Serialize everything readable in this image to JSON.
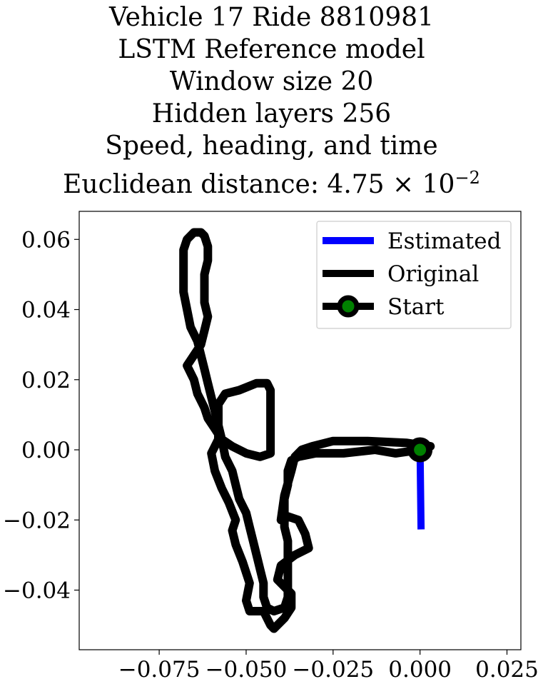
{
  "title_lines": [
    "Vehicle 17 Ride 8810981",
    "LSTM Reference model",
    "Window size 20",
    "Hidden layers 256",
    "Speed, heading, and time"
  ],
  "distance_title": {
    "prefix": "Euclidean distance: ",
    "mantissa": "4.75",
    "times": "×",
    "base": "10",
    "exponent": "−2"
  },
  "chart_data": {
    "type": "line",
    "xlabel": "",
    "ylabel": "",
    "xlim": [
      -0.098,
      0.029
    ],
    "ylim": [
      -0.057,
      0.068
    ],
    "grid": false,
    "legend_position": "top-right",
    "x_ticks": [
      -0.075,
      -0.05,
      -0.025,
      0.0,
      0.025
    ],
    "x_tick_labels": [
      "−0.075",
      "−0.050",
      "−0.025",
      "0.000",
      "0.025"
    ],
    "y_ticks": [
      0.06,
      0.04,
      0.02,
      0.0,
      -0.02,
      -0.04
    ],
    "y_tick_labels": [
      "0.06",
      "0.04",
      "0.02",
      "0.00",
      "−0.02",
      "−0.04"
    ],
    "series": [
      {
        "name": "Estimated",
        "color": "#0000ff",
        "points": [
          [
            0.0,
            0.0
          ],
          [
            0.0003,
            -0.0227
          ]
        ]
      },
      {
        "name": "Original",
        "color": "#000000",
        "points": [
          [
            0.0,
            0.0
          ],
          [
            0.003,
            0.001
          ],
          [
            -0.004,
            0.002
          ],
          [
            -0.015,
            0.0025
          ],
          [
            -0.025,
            0.0025
          ],
          [
            -0.031,
            0.001
          ],
          [
            -0.034,
            0.0
          ],
          [
            -0.036,
            -0.002
          ],
          [
            -0.037,
            -0.006
          ],
          [
            -0.039,
            -0.013
          ],
          [
            -0.04,
            -0.02
          ],
          [
            -0.038,
            -0.019
          ],
          [
            -0.035,
            -0.02
          ],
          [
            -0.033,
            -0.024
          ],
          [
            -0.032,
            -0.028
          ],
          [
            -0.036,
            -0.03
          ],
          [
            -0.04,
            -0.033
          ],
          [
            -0.041,
            -0.037
          ],
          [
            -0.038,
            -0.04
          ],
          [
            -0.037,
            -0.041
          ],
          [
            -0.037,
            -0.045
          ],
          [
            -0.039,
            -0.048
          ],
          [
            -0.042,
            -0.051
          ],
          [
            -0.043,
            -0.05
          ],
          [
            -0.045,
            -0.046
          ],
          [
            -0.049,
            -0.046
          ],
          [
            -0.05,
            -0.043
          ],
          [
            -0.049,
            -0.038
          ],
          [
            -0.051,
            -0.032
          ],
          [
            -0.053,
            -0.027
          ],
          [
            -0.054,
            -0.023
          ],
          [
            -0.053,
            -0.02
          ],
          [
            -0.055,
            -0.015
          ],
          [
            -0.057,
            -0.011
          ],
          [
            -0.059,
            -0.006
          ],
          [
            -0.06,
            -0.001
          ],
          [
            -0.058,
            0.003
          ],
          [
            -0.058,
            0.008
          ],
          [
            -0.058,
            0.013
          ],
          [
            -0.056,
            0.016
          ],
          [
            -0.052,
            0.017
          ],
          [
            -0.047,
            0.019
          ],
          [
            -0.044,
            0.019
          ],
          [
            -0.043,
            0.017
          ],
          [
            -0.043,
            0.013
          ],
          [
            -0.043,
            0.008
          ],
          [
            -0.043,
            0.003
          ],
          [
            -0.043,
            -0.001
          ],
          [
            -0.046,
            -0.002
          ],
          [
            -0.05,
            -0.001
          ],
          [
            -0.054,
            0.001
          ],
          [
            -0.057,
            0.003
          ],
          [
            -0.059,
            0.006
          ],
          [
            -0.061,
            0.009
          ],
          [
            -0.062,
            0.012
          ],
          [
            -0.064,
            0.016
          ],
          [
            -0.065,
            0.02
          ],
          [
            -0.067,
            0.024
          ],
          [
            -0.065,
            0.027
          ],
          [
            -0.063,
            0.03
          ],
          [
            -0.062,
            0.034
          ],
          [
            -0.061,
            0.038
          ],
          [
            -0.062,
            0.042
          ],
          [
            -0.062,
            0.046
          ],
          [
            -0.062,
            0.05
          ],
          [
            -0.061,
            0.054
          ],
          [
            -0.061,
            0.058
          ],
          [
            -0.062,
            0.061
          ],
          [
            -0.063,
            0.062
          ],
          [
            -0.065,
            0.062
          ],
          [
            -0.067,
            0.06
          ],
          [
            -0.068,
            0.057
          ],
          [
            -0.068,
            0.053
          ],
          [
            -0.068,
            0.049
          ],
          [
            -0.068,
            0.045
          ],
          [
            -0.067,
            0.04
          ],
          [
            -0.066,
            0.035
          ],
          [
            -0.064,
            0.031
          ],
          [
            -0.063,
            0.027
          ],
          [
            -0.062,
            0.023
          ],
          [
            -0.061,
            0.019
          ],
          [
            -0.06,
            0.015
          ],
          [
            -0.059,
            0.011
          ],
          [
            -0.058,
            0.007
          ],
          [
            -0.057,
            0.003
          ],
          [
            -0.056,
            -0.002
          ],
          [
            -0.054,
            -0.006
          ],
          [
            -0.053,
            -0.01
          ],
          [
            -0.052,
            -0.014
          ],
          [
            -0.05,
            -0.018
          ],
          [
            -0.049,
            -0.022
          ],
          [
            -0.048,
            -0.026
          ],
          [
            -0.047,
            -0.03
          ],
          [
            -0.046,
            -0.034
          ],
          [
            -0.045,
            -0.038
          ],
          [
            -0.045,
            -0.042
          ],
          [
            -0.044,
            -0.045
          ],
          [
            -0.042,
            -0.046
          ],
          [
            -0.039,
            -0.045
          ],
          [
            -0.038,
            -0.042
          ],
          [
            -0.038,
            -0.038
          ],
          [
            -0.038,
            -0.034
          ],
          [
            -0.038,
            -0.03
          ],
          [
            -0.038,
            -0.026
          ],
          [
            -0.039,
            -0.022
          ],
          [
            -0.039,
            -0.018
          ],
          [
            -0.039,
            -0.014
          ],
          [
            -0.038,
            -0.01
          ],
          [
            -0.038,
            -0.006
          ],
          [
            -0.037,
            -0.003
          ],
          [
            -0.035,
            -0.002
          ],
          [
            -0.03,
            -0.001
          ],
          [
            -0.022,
            -0.001
          ],
          [
            -0.013,
            0.0
          ],
          [
            -0.007,
            -0.001
          ],
          [
            0.0,
            0.0
          ]
        ]
      }
    ],
    "start_marker": {
      "name": "Start",
      "point": [
        0.0,
        0.0
      ],
      "edge_color": "#000000",
      "face_color": "#008000"
    }
  }
}
